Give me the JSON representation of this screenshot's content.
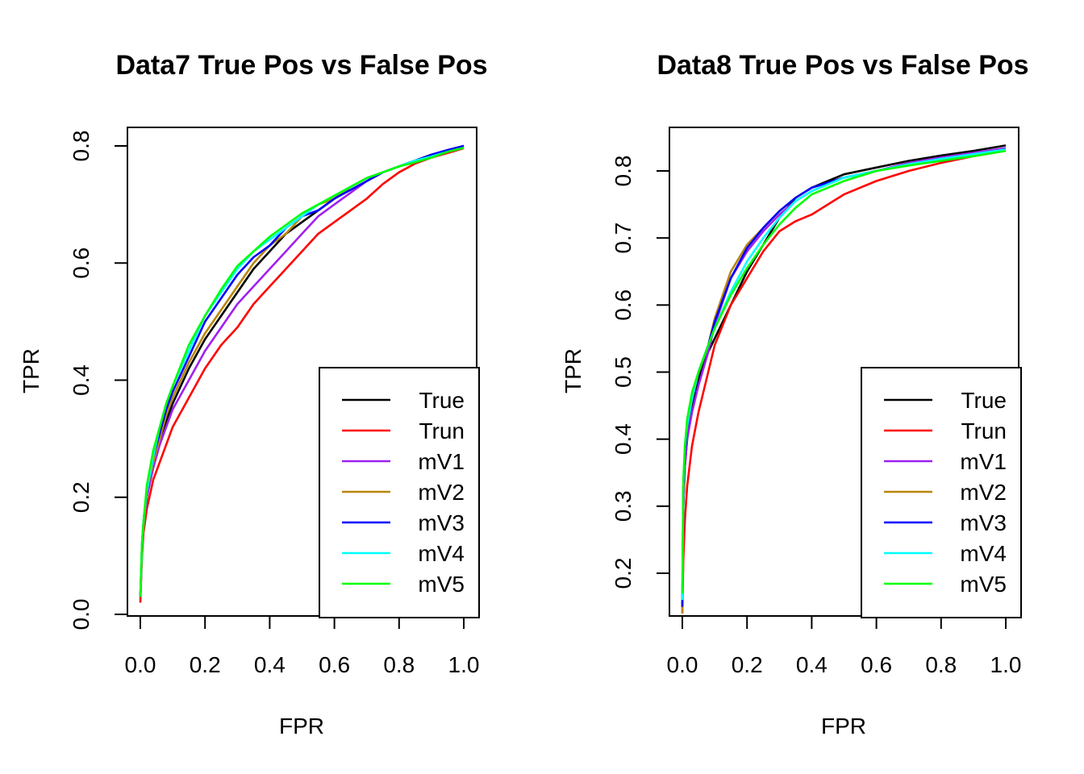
{
  "chart_data": [
    {
      "type": "line",
      "title": "Data7 True Pos vs False Pos",
      "xlabel": "FPR",
      "ylabel": "TPR",
      "xlim": [
        0,
        1
      ],
      "ylim": [
        0,
        0.8
      ],
      "xticks": [
        "0.0",
        "0.2",
        "0.4",
        "0.6",
        "0.8",
        "1.0"
      ],
      "yticks": [
        "0.0",
        "0.2",
        "0.4",
        "0.6",
        "0.8"
      ],
      "grid": false,
      "legend_position": "bottom-right",
      "series": [
        {
          "name": "True",
          "color": "#000000",
          "x": [
            0,
            0.005,
            0.01,
            0.02,
            0.04,
            0.06,
            0.08,
            0.1,
            0.15,
            0.2,
            0.25,
            0.3,
            0.35,
            0.4,
            0.45,
            0.5,
            0.55,
            0.6,
            0.65,
            0.7,
            0.75,
            0.8,
            0.85,
            0.9,
            0.95,
            1.0
          ],
          "y": [
            0.03,
            0.11,
            0.15,
            0.2,
            0.26,
            0.3,
            0.33,
            0.36,
            0.42,
            0.47,
            0.51,
            0.55,
            0.59,
            0.62,
            0.65,
            0.67,
            0.69,
            0.71,
            0.73,
            0.745,
            0.755,
            0.765,
            0.775,
            0.785,
            0.793,
            0.8
          ]
        },
        {
          "name": "Trun",
          "color": "#ff0000",
          "x": [
            0,
            0.005,
            0.01,
            0.02,
            0.04,
            0.06,
            0.08,
            0.1,
            0.15,
            0.2,
            0.25,
            0.3,
            0.35,
            0.4,
            0.45,
            0.5,
            0.55,
            0.6,
            0.65,
            0.7,
            0.75,
            0.8,
            0.85,
            0.9,
            0.95,
            1.0
          ],
          "y": [
            0.02,
            0.1,
            0.14,
            0.18,
            0.23,
            0.26,
            0.29,
            0.32,
            0.37,
            0.42,
            0.46,
            0.49,
            0.53,
            0.56,
            0.59,
            0.62,
            0.65,
            0.67,
            0.69,
            0.71,
            0.735,
            0.755,
            0.77,
            0.78,
            0.788,
            0.796
          ]
        },
        {
          "name": "mV1",
          "color": "#a020f0",
          "x": [
            0,
            0.005,
            0.01,
            0.02,
            0.04,
            0.06,
            0.08,
            0.1,
            0.15,
            0.2,
            0.25,
            0.3,
            0.35,
            0.4,
            0.45,
            0.5,
            0.55,
            0.6,
            0.65,
            0.7,
            0.75,
            0.8,
            0.85,
            0.9,
            0.95,
            1.0
          ],
          "y": [
            0.03,
            0.11,
            0.15,
            0.2,
            0.25,
            0.29,
            0.32,
            0.35,
            0.4,
            0.45,
            0.49,
            0.53,
            0.56,
            0.59,
            0.62,
            0.65,
            0.68,
            0.7,
            0.72,
            0.74,
            0.755,
            0.765,
            0.775,
            0.785,
            0.793,
            0.8
          ]
        },
        {
          "name": "mV2",
          "color": "#b8860b",
          "x": [
            0,
            0.005,
            0.01,
            0.02,
            0.04,
            0.06,
            0.08,
            0.1,
            0.15,
            0.2,
            0.25,
            0.3,
            0.35,
            0.4,
            0.45,
            0.5,
            0.55,
            0.6,
            0.65,
            0.7,
            0.75,
            0.8,
            0.85,
            0.9,
            0.95,
            1.0
          ],
          "y": [
            0.03,
            0.11,
            0.15,
            0.21,
            0.26,
            0.3,
            0.34,
            0.37,
            0.43,
            0.48,
            0.52,
            0.56,
            0.6,
            0.63,
            0.65,
            0.68,
            0.7,
            0.71,
            0.73,
            0.745,
            0.755,
            0.765,
            0.775,
            0.785,
            0.79,
            0.797
          ]
        },
        {
          "name": "mV3",
          "color": "#0000ff",
          "x": [
            0,
            0.005,
            0.01,
            0.02,
            0.04,
            0.06,
            0.08,
            0.1,
            0.15,
            0.2,
            0.25,
            0.3,
            0.35,
            0.4,
            0.45,
            0.5,
            0.55,
            0.6,
            0.65,
            0.7,
            0.75,
            0.8,
            0.85,
            0.9,
            0.95,
            1.0
          ],
          "y": [
            0.03,
            0.12,
            0.16,
            0.21,
            0.27,
            0.31,
            0.35,
            0.38,
            0.44,
            0.5,
            0.54,
            0.58,
            0.61,
            0.63,
            0.66,
            0.68,
            0.69,
            0.71,
            0.725,
            0.74,
            0.755,
            0.765,
            0.775,
            0.785,
            0.793,
            0.8
          ]
        },
        {
          "name": "mV4",
          "color": "#00ffff",
          "x": [
            0,
            0.005,
            0.01,
            0.02,
            0.04,
            0.06,
            0.08,
            0.1,
            0.15,
            0.2,
            0.25,
            0.3,
            0.35,
            0.4,
            0.45,
            0.5,
            0.55,
            0.6,
            0.65,
            0.7,
            0.75,
            0.8,
            0.85,
            0.9,
            0.95,
            1.0
          ],
          "y": [
            0.03,
            0.12,
            0.16,
            0.21,
            0.27,
            0.32,
            0.36,
            0.39,
            0.45,
            0.51,
            0.55,
            0.59,
            0.62,
            0.64,
            0.66,
            0.68,
            0.7,
            0.715,
            0.73,
            0.745,
            0.755,
            0.765,
            0.775,
            0.782,
            0.79,
            0.797
          ]
        },
        {
          "name": "mV5",
          "color": "#00ff00",
          "x": [
            0,
            0.005,
            0.01,
            0.02,
            0.04,
            0.06,
            0.08,
            0.1,
            0.15,
            0.2,
            0.25,
            0.3,
            0.35,
            0.4,
            0.45,
            0.5,
            0.55,
            0.6,
            0.65,
            0.7,
            0.75,
            0.8,
            0.85,
            0.9,
            0.95,
            1.0
          ],
          "y": [
            0.03,
            0.12,
            0.16,
            0.22,
            0.28,
            0.32,
            0.36,
            0.39,
            0.46,
            0.51,
            0.555,
            0.595,
            0.62,
            0.645,
            0.665,
            0.685,
            0.7,
            0.715,
            0.73,
            0.745,
            0.755,
            0.765,
            0.772,
            0.78,
            0.79,
            0.797
          ]
        }
      ]
    },
    {
      "type": "line",
      "title": "Data8 True Pos vs False Pos",
      "xlabel": "FPR",
      "ylabel": "TPR",
      "xlim": [
        0,
        1
      ],
      "ylim": [
        0.14,
        0.84
      ],
      "xticks": [
        "0.0",
        "0.2",
        "0.4",
        "0.6",
        "0.8",
        "1.0"
      ],
      "yticks": [
        "0.2",
        "0.3",
        "0.4",
        "0.5",
        "0.6",
        "0.7",
        "0.8"
      ],
      "grid": false,
      "legend_position": "bottom-right",
      "series": [
        {
          "name": "True",
          "color": "#000000",
          "x": [
            0,
            0.003,
            0.008,
            0.015,
            0.03,
            0.05,
            0.08,
            0.1,
            0.15,
            0.2,
            0.25,
            0.3,
            0.35,
            0.4,
            0.5,
            0.6,
            0.7,
            0.8,
            0.9,
            1.0
          ],
          "y": [
            0.15,
            0.3,
            0.36,
            0.4,
            0.45,
            0.49,
            0.53,
            0.55,
            0.6,
            0.65,
            0.69,
            0.73,
            0.76,
            0.775,
            0.795,
            0.805,
            0.815,
            0.823,
            0.83,
            0.838
          ]
        },
        {
          "name": "Trun",
          "color": "#ff0000",
          "x": [
            0,
            0.003,
            0.008,
            0.015,
            0.03,
            0.05,
            0.08,
            0.1,
            0.15,
            0.2,
            0.25,
            0.3,
            0.35,
            0.4,
            0.5,
            0.6,
            0.7,
            0.8,
            0.9,
            1.0
          ],
          "y": [
            0.14,
            0.22,
            0.28,
            0.33,
            0.39,
            0.44,
            0.5,
            0.54,
            0.6,
            0.64,
            0.68,
            0.71,
            0.725,
            0.735,
            0.765,
            0.785,
            0.8,
            0.812,
            0.822,
            0.83
          ]
        },
        {
          "name": "mV1",
          "color": "#a020f0",
          "x": [
            0,
            0.003,
            0.008,
            0.015,
            0.03,
            0.05,
            0.08,
            0.1,
            0.15,
            0.2,
            0.25,
            0.3,
            0.35,
            0.4,
            0.5,
            0.6,
            0.7,
            0.8,
            0.9,
            1.0
          ],
          "y": [
            0.15,
            0.3,
            0.36,
            0.4,
            0.44,
            0.48,
            0.53,
            0.57,
            0.64,
            0.68,
            0.71,
            0.735,
            0.755,
            0.77,
            0.79,
            0.8,
            0.812,
            0.82,
            0.827,
            0.834
          ]
        },
        {
          "name": "mV2",
          "color": "#b8860b",
          "x": [
            0,
            0.003,
            0.008,
            0.015,
            0.03,
            0.05,
            0.08,
            0.1,
            0.15,
            0.2,
            0.25,
            0.3,
            0.35,
            0.4,
            0.5,
            0.6,
            0.7,
            0.8,
            0.9,
            1.0
          ],
          "y": [
            0.14,
            0.32,
            0.38,
            0.42,
            0.46,
            0.5,
            0.54,
            0.58,
            0.65,
            0.69,
            0.715,
            0.74,
            0.76,
            0.775,
            0.79,
            0.8,
            0.81,
            0.818,
            0.825,
            0.832
          ]
        },
        {
          "name": "mV3",
          "color": "#0000ff",
          "x": [
            0,
            0.003,
            0.008,
            0.015,
            0.03,
            0.05,
            0.08,
            0.1,
            0.15,
            0.2,
            0.25,
            0.3,
            0.35,
            0.4,
            0.5,
            0.6,
            0.7,
            0.8,
            0.9,
            1.0
          ],
          "y": [
            0.15,
            0.33,
            0.38,
            0.42,
            0.46,
            0.5,
            0.54,
            0.575,
            0.64,
            0.685,
            0.715,
            0.74,
            0.76,
            0.775,
            0.79,
            0.8,
            0.81,
            0.818,
            0.825,
            0.832
          ]
        },
        {
          "name": "mV4",
          "color": "#00ffff",
          "x": [
            0,
            0.003,
            0.008,
            0.015,
            0.03,
            0.05,
            0.08,
            0.1,
            0.15,
            0.2,
            0.25,
            0.3,
            0.35,
            0.4,
            0.5,
            0.6,
            0.7,
            0.8,
            0.9,
            1.0
          ],
          "y": [
            0.16,
            0.33,
            0.39,
            0.42,
            0.46,
            0.5,
            0.54,
            0.565,
            0.62,
            0.665,
            0.7,
            0.73,
            0.755,
            0.77,
            0.79,
            0.8,
            0.81,
            0.818,
            0.825,
            0.832
          ]
        },
        {
          "name": "mV5",
          "color": "#00ff00",
          "x": [
            0,
            0.003,
            0.008,
            0.015,
            0.03,
            0.05,
            0.08,
            0.1,
            0.15,
            0.2,
            0.25,
            0.3,
            0.35,
            0.4,
            0.5,
            0.6,
            0.7,
            0.8,
            0.9,
            1.0
          ],
          "y": [
            0.17,
            0.34,
            0.39,
            0.43,
            0.47,
            0.5,
            0.54,
            0.565,
            0.615,
            0.655,
            0.69,
            0.72,
            0.745,
            0.765,
            0.785,
            0.8,
            0.808,
            0.815,
            0.822,
            0.83
          ]
        }
      ]
    }
  ]
}
